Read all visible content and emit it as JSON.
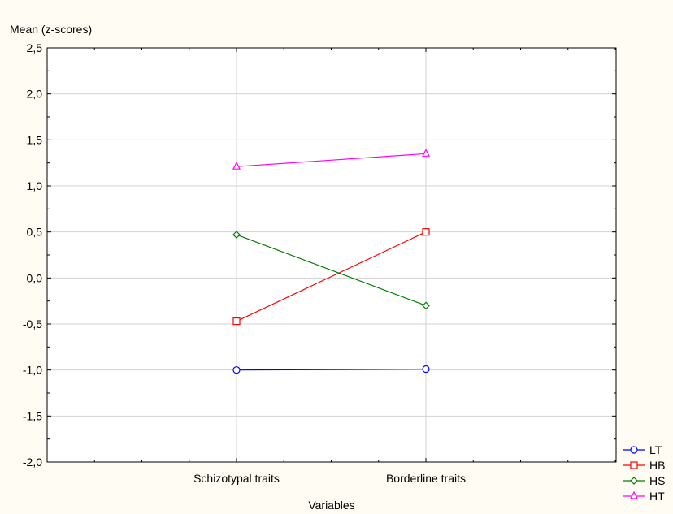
{
  "chart_data": {
    "type": "line",
    "title": "",
    "ylabel": "Mean (z-scores)",
    "xlabel": "Variables",
    "categories": [
      "Schizotypal traits",
      "Borderline traits"
    ],
    "ylim": [
      -2.0,
      2.5
    ],
    "yticks": [
      "2,5",
      "2,0",
      "1,5",
      "1,0",
      "0,5",
      "0,0",
      "-0,5",
      "-1,0",
      "-1,5",
      "-2,0"
    ],
    "grid": "vertical gridlines at categories, horizontal gridlines at y ticks",
    "legend_position": "bottom-right",
    "series": [
      {
        "name": "LT",
        "color": "#0000ff",
        "marker": "circle",
        "values": [
          -1.0,
          -0.99
        ]
      },
      {
        "name": "HB",
        "color": "#ff0000",
        "marker": "square",
        "values": [
          -0.47,
          0.5
        ]
      },
      {
        "name": "HS",
        "color": "#008000",
        "marker": "diamond",
        "values": [
          0.47,
          -0.3
        ]
      },
      {
        "name": "HT",
        "color": "#ff00ff",
        "marker": "triangle",
        "values": [
          1.21,
          1.35
        ]
      }
    ]
  }
}
